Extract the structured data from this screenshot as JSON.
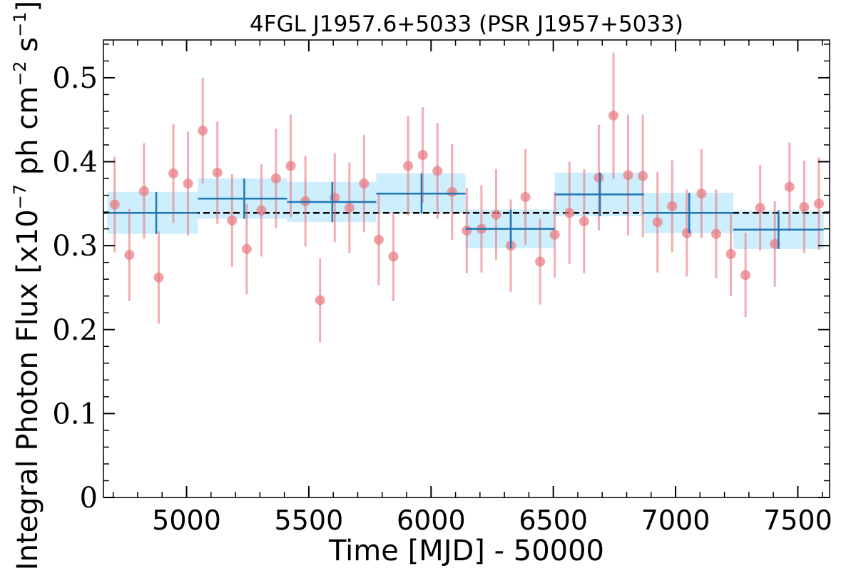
{
  "chart_data": {
    "type": "scatter",
    "title": "4FGL J1957.6+5033 (PSR J1957+5033)",
    "xlabel": "Time [MJD] - 50000",
    "ylabel": {
      "prefix": "Integral Photon Flux [x10",
      "exp1": "−7",
      "mid": " ph cm",
      "exp2": "−2",
      "mid2": " s",
      "exp3": "−1",
      "suffix": "]"
    },
    "xlim": [
      4660,
      7630
    ],
    "ylim": [
      0,
      0.545
    ],
    "xticks": [
      5000,
      5500,
      6000,
      6500,
      7000,
      7500
    ],
    "xtick_labels": [
      "5000",
      "5500",
      "6000",
      "6500",
      "7000",
      "7500"
    ],
    "xminor_step": 100,
    "yticks": [
      0,
      0.1,
      0.2,
      0.3,
      0.4,
      0.5
    ],
    "ytick_labels": [
      "0",
      "0.1",
      "0.2",
      "0.3",
      "0.4",
      "0.5"
    ],
    "yminor_step": 0.02,
    "mean_flux": 0.339,
    "colors": {
      "points": "#e8777f",
      "bins": "#1f77b4",
      "bands": "#cdeefc",
      "mean_line": "#000000"
    },
    "series": [
      {
        "x": [
          4706,
          4766,
          4826,
          4886,
          4946,
          5006,
          5066,
          5126,
          5186,
          5246,
          5306,
          5366,
          5426,
          5486,
          5546,
          5606,
          5666,
          5726,
          5786,
          5846,
          5906,
          5966,
          6026,
          6086,
          6146,
          6206,
          6266,
          6326,
          6386,
          6446,
          6506,
          6566,
          6626,
          6686,
          6746,
          6806,
          6866,
          6926,
          6986,
          7046,
          7106,
          7166,
          7226,
          7286,
          7346,
          7406,
          7466,
          7526,
          7586
        ],
        "y": [
          0.349,
          0.289,
          0.365,
          0.262,
          0.386,
          0.374,
          0.437,
          0.387,
          0.33,
          0.296,
          0.342,
          0.38,
          0.395,
          0.353,
          0.235,
          0.357,
          0.345,
          0.374,
          0.307,
          0.287,
          0.395,
          0.408,
          0.389,
          0.364,
          0.318,
          0.32,
          0.337,
          0.3,
          0.358,
          0.281,
          0.313,
          0.339,
          0.329,
          0.381,
          0.455,
          0.384,
          0.383,
          0.328,
          0.347,
          0.315,
          0.362,
          0.314,
          0.29,
          0.265,
          0.345,
          0.302,
          0.37,
          0.346,
          0.35
        ],
        "err": [
          0.057,
          0.055,
          0.057,
          0.055,
          0.059,
          0.062,
          0.063,
          0.061,
          0.055,
          0.054,
          0.055,
          0.059,
          0.061,
          0.054,
          0.05,
          0.053,
          0.054,
          0.058,
          0.054,
          0.053,
          0.059,
          0.057,
          0.057,
          0.057,
          0.051,
          0.052,
          0.054,
          0.055,
          0.057,
          0.051,
          0.051,
          0.061,
          0.062,
          0.063,
          0.075,
          0.072,
          0.073,
          0.06,
          0.055,
          0.052,
          0.053,
          0.053,
          0.05,
          0.05,
          0.051,
          0.051,
          0.053,
          0.055,
          0.055
        ]
      }
    ],
    "bins": [
      {
        "x0": 4676,
        "x1": 5046,
        "xc": 4876,
        "y": 0.339,
        "err": 0.025
      },
      {
        "x0": 5046,
        "x1": 5411,
        "xc": 5236,
        "y": 0.356,
        "err": 0.024
      },
      {
        "x0": 5411,
        "x1": 5776,
        "xc": 5596,
        "y": 0.352,
        "err": 0.024
      },
      {
        "x0": 5776,
        "x1": 6141,
        "xc": 5961,
        "y": 0.362,
        "err": 0.024
      },
      {
        "x0": 6141,
        "x1": 6506,
        "xc": 6326,
        "y": 0.32,
        "err": 0.023
      },
      {
        "x0": 6506,
        "x1": 6871,
        "xc": 6691,
        "y": 0.361,
        "err": 0.026
      },
      {
        "x0": 6871,
        "x1": 7236,
        "xc": 7056,
        "y": 0.339,
        "err": 0.024
      },
      {
        "x0": 7236,
        "x1": 7606,
        "xc": 7421,
        "y": 0.319,
        "err": 0.023
      }
    ]
  }
}
